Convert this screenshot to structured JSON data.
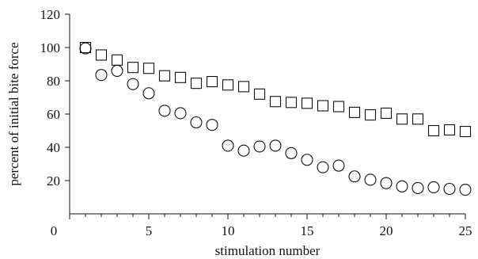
{
  "chart_data": {
    "type": "scatter",
    "xlabel": "stimulation number",
    "ylabel": "percent of initial bite force",
    "xlim": [
      0,
      25
    ],
    "ylim": [
      0,
      120
    ],
    "x_ticks": [
      0,
      5,
      10,
      15,
      20,
      25
    ],
    "y_ticks": [
      20,
      40,
      60,
      80,
      100,
      120
    ],
    "grid": false,
    "series": [
      {
        "marker": "square",
        "x": [
          1,
          2,
          3,
          4,
          5,
          6,
          7,
          8,
          9,
          10,
          11,
          12,
          13,
          14,
          15,
          16,
          17,
          18,
          19,
          20,
          21,
          22,
          23,
          24,
          25
        ],
        "y": [
          100,
          95.5,
          92.5,
          88,
          87.5,
          83,
          82,
          78.5,
          79.5,
          77.5,
          76.5,
          72,
          67.5,
          67,
          66.5,
          65,
          64.5,
          61,
          59.5,
          60.5,
          57,
          57,
          50,
          50.5,
          49.5
        ]
      },
      {
        "marker": "circle",
        "x": [
          1,
          2,
          3,
          4,
          5,
          6,
          7,
          8,
          9,
          10,
          11,
          12,
          13,
          14,
          15,
          16,
          17,
          18,
          19,
          20,
          21,
          22,
          23,
          24,
          25
        ],
        "y": [
          99.5,
          83.5,
          86,
          78,
          72.5,
          62,
          60.5,
          55,
          53.5,
          41,
          38,
          40.5,
          41,
          36.5,
          32.5,
          28,
          29,
          22.5,
          20.5,
          18.5,
          16.5,
          15.5,
          16,
          15,
          14.5
        ]
      }
    ]
  }
}
